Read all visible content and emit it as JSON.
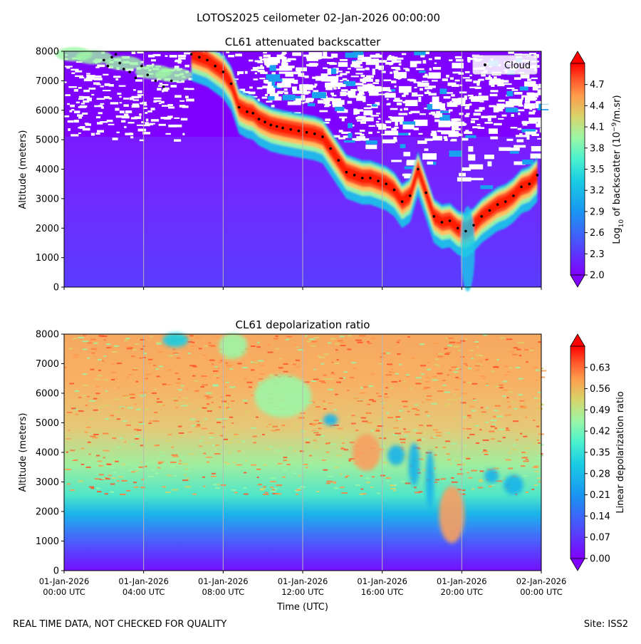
{
  "suptitle": "LOTOS2025 ceilometer 02-Jan-2026 00:00:00",
  "footer_left": "REAL TIME DATA, NOT CHECKED FOR QUALITY",
  "footer_right": "Site: ISS2",
  "chart_data": [
    {
      "type": "heatmap",
      "title": "CL61 attenuated backscatter",
      "ylabel": "Altitude (meters)",
      "xlabel": "",
      "ylim": [
        0,
        8000
      ],
      "yticks": [
        "0",
        "1000",
        "2000",
        "3000",
        "4000",
        "5000",
        "6000",
        "7000",
        "8000"
      ],
      "xticks": [],
      "colorbar": {
        "label": "Log10 of backscatter (10^-9/m.sr)",
        "label_parts": [
          "Log",
          "10",
          " of backscatter (10",
          "−9",
          "/m.sr)"
        ],
        "range": [
          2.0,
          5.0
        ],
        "ticks": [
          "2.0",
          "2.3",
          "2.6",
          "2.9",
          "3.2",
          "3.5",
          "3.8",
          "4.1",
          "4.4",
          "4.7"
        ],
        "colormap": "rainbow",
        "extend": "both"
      },
      "legend": {
        "entries": [
          "Cloud"
        ],
        "placement": "top-right"
      },
      "cloud_base_series": {
        "name": "Cloud",
        "x_hours": [
          2.0,
          2.2,
          2.4,
          2.6,
          2.8,
          3.0,
          3.3,
          3.6,
          3.9,
          4.2,
          4.6,
          5.0,
          5.4,
          6.4,
          6.8,
          7.2,
          7.6,
          8.0,
          8.4,
          8.8,
          9.2,
          9.5,
          9.8,
          10.1,
          10.4,
          10.7,
          11.0,
          11.4,
          11.8,
          12.2,
          12.6,
          13.0,
          13.4,
          13.8,
          14.2,
          14.6,
          15.0,
          15.4,
          15.8,
          16.2,
          16.6,
          17.0,
          17.4,
          17.8,
          18.2,
          18.6,
          19.0,
          19.4,
          19.8,
          20.2,
          20.6,
          21.0,
          21.4,
          21.8,
          22.2,
          22.6,
          23.0,
          23.4,
          23.8
        ],
        "altitude_m": [
          7700,
          7500,
          7800,
          7900,
          7600,
          7400,
          7300,
          7100,
          7500,
          7200,
          7000,
          6800,
          7000,
          7900,
          7800,
          7700,
          7500,
          7300,
          6900,
          6100,
          5950,
          5900,
          5700,
          5600,
          5500,
          5450,
          5400,
          5350,
          5300,
          5250,
          5200,
          5100,
          4700,
          4300,
          3900,
          3800,
          3700,
          3700,
          3600,
          3500,
          3300,
          2900,
          3100,
          4000,
          3200,
          2400,
          2200,
          2250,
          2000,
          1900,
          2100,
          2400,
          2600,
          2800,
          2900,
          3100,
          3400,
          3500,
          3800
        ]
      }
    },
    {
      "type": "heatmap",
      "title": "CL61 depolarization ratio",
      "ylabel": "Altitude (meters)",
      "xlabel": "Time (UTC)",
      "ylim": [
        0,
        8000
      ],
      "yticks": [
        "0",
        "1000",
        "2000",
        "3000",
        "4000",
        "5000",
        "6000",
        "7000",
        "8000"
      ],
      "xticks": [
        {
          "hour": 0,
          "l1": "01-Jan-2026",
          "l2": "00:00 UTC"
        },
        {
          "hour": 4,
          "l1": "01-Jan-2026",
          "l2": "04:00 UTC"
        },
        {
          "hour": 8,
          "l1": "01-Jan-2026",
          "l2": "08:00 UTC"
        },
        {
          "hour": 12,
          "l1": "01-Jan-2026",
          "l2": "12:00 UTC"
        },
        {
          "hour": 16,
          "l1": "01-Jan-2026",
          "l2": "16:00 UTC"
        },
        {
          "hour": 20,
          "l1": "01-Jan-2026",
          "l2": "20:00 UTC"
        },
        {
          "hour": 24,
          "l1": "02-Jan-2026",
          "l2": "00:00 UTC"
        }
      ],
      "colorbar": {
        "label": "Linear depolarization ratio",
        "label_parts": [
          "Linear depolarization ratio"
        ],
        "range": [
          0.0,
          0.7
        ],
        "ticks": [
          "0.00",
          "0.07",
          "0.14",
          "0.21",
          "0.28",
          "0.35",
          "0.42",
          "0.49",
          "0.56",
          "0.63"
        ],
        "colormap": "rainbow",
        "extend": "both"
      }
    }
  ]
}
